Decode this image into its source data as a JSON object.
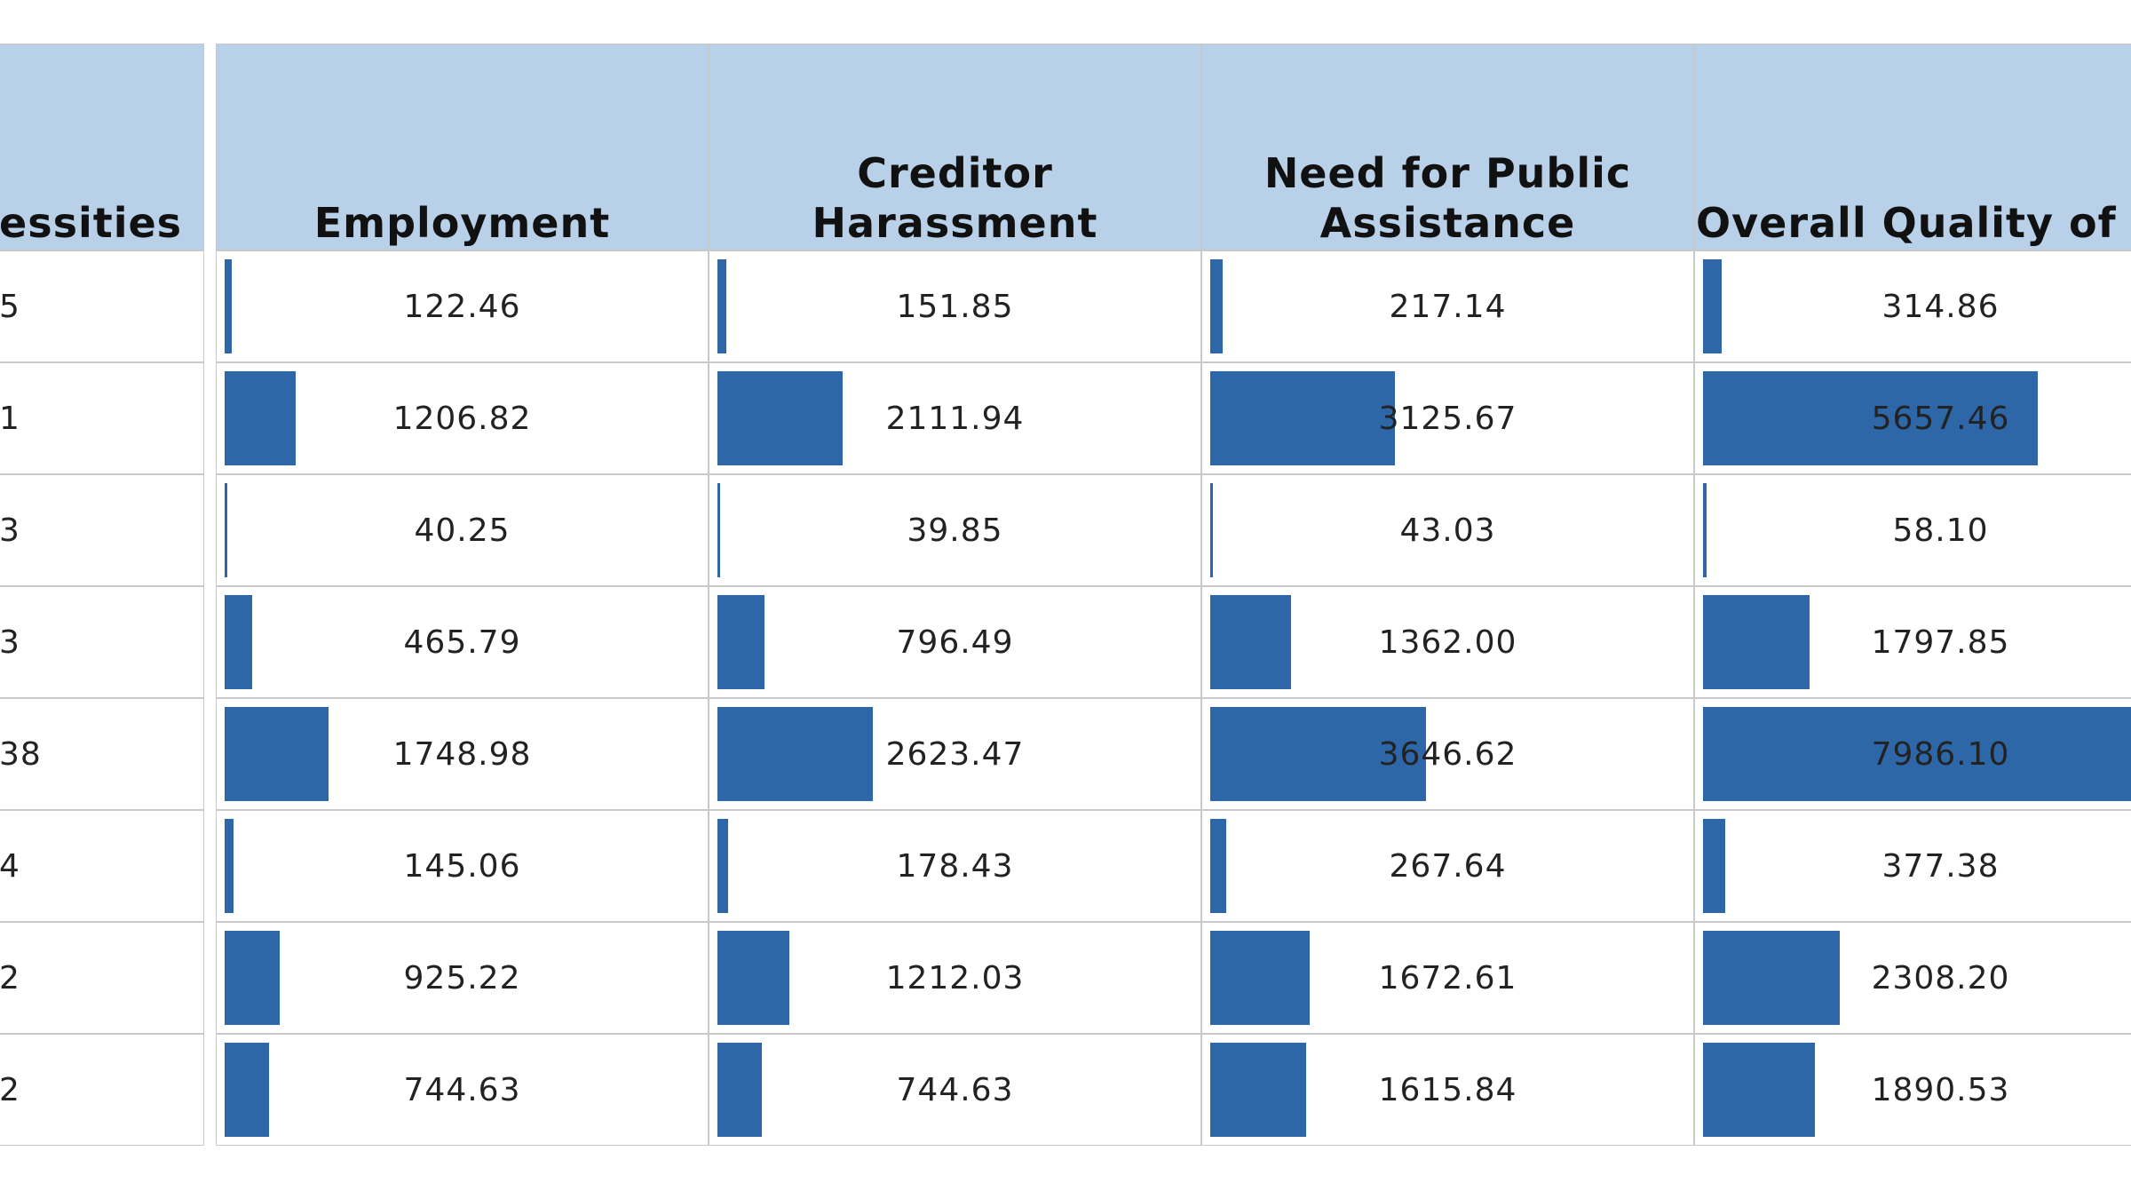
{
  "left_column": {
    "header": "essities",
    "cells": [
      "5",
      "1",
      "3",
      "3",
      "38",
      "4",
      "2",
      "2"
    ]
  },
  "table": {
    "headers": [
      "Employment",
      "Creditor Harassment",
      "Need for Public Assistance",
      "Overall Quality of Life"
    ],
    "rows": [
      [
        "122.46",
        "151.85",
        "217.14",
        "314.86"
      ],
      [
        "1206.82",
        "2111.94",
        "3125.67",
        "5657.46"
      ],
      [
        "40.25",
        "39.85",
        "43.03",
        "58.10"
      ],
      [
        "465.79",
        "796.49",
        "1362.00",
        "1797.85"
      ],
      [
        "1748.98",
        "2623.47",
        "3646.62",
        "7986.10"
      ],
      [
        "145.06",
        "178.43",
        "267.64",
        "377.38"
      ],
      [
        "925.22",
        "1212.03",
        "1672.61",
        "2308.20"
      ],
      [
        "744.63",
        "744.63",
        "1615.84",
        "1890.53"
      ]
    ]
  }
}
